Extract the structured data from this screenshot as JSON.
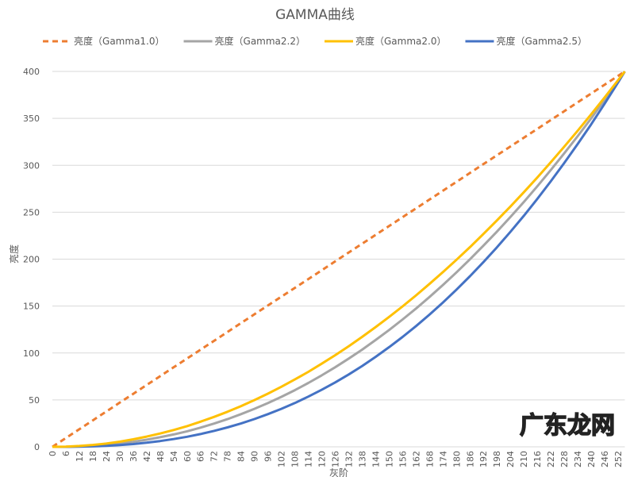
{
  "chart_data": {
    "type": "line",
    "title": "GAMMA曲线",
    "xlabel": "灰阶",
    "ylabel": "亮度",
    "ylim": [
      0,
      400
    ],
    "yticks": [
      0,
      50,
      100,
      150,
      200,
      250,
      300,
      350,
      400
    ],
    "xlim": [
      0,
      255
    ],
    "xticks": [
      0,
      6,
      12,
      18,
      24,
      30,
      36,
      42,
      48,
      54,
      60,
      66,
      72,
      78,
      84,
      90,
      96,
      102,
      108,
      114,
      120,
      126,
      132,
      138,
      144,
      150,
      156,
      162,
      168,
      174,
      180,
      186,
      192,
      198,
      204,
      210,
      216,
      222,
      228,
      234,
      240,
      246,
      252
    ],
    "grid": "horizontal",
    "legend": "top",
    "x": [
      0,
      6,
      12,
      18,
      24,
      30,
      36,
      42,
      48,
      54,
      60,
      66,
      72,
      78,
      84,
      90,
      96,
      102,
      108,
      114,
      120,
      126,
      132,
      138,
      144,
      150,
      156,
      162,
      168,
      174,
      180,
      186,
      192,
      198,
      204,
      210,
      216,
      222,
      228,
      234,
      240,
      246,
      252,
      255
    ],
    "series": [
      {
        "name": "亮度（Gamma1.0）",
        "color": "#ED7D31",
        "dash": true,
        "values": [
          0,
          9.4,
          18.8,
          28.2,
          37.6,
          47.1,
          56.5,
          65.9,
          75.3,
          84.7,
          94.1,
          103.5,
          112.9,
          122.4,
          131.8,
          141.2,
          150.6,
          160,
          169.4,
          178.8,
          188.2,
          197.6,
          207.1,
          216.5,
          225.9,
          235.3,
          244.7,
          254.1,
          263.5,
          272.9,
          282.4,
          291.8,
          301.2,
          310.6,
          320,
          329.4,
          338.8,
          348.2,
          357.6,
          367.1,
          376.5,
          385.9,
          395.3,
          400
        ]
      },
      {
        "name": "亮度（Gamma2.2）",
        "color": "#A5A5A5",
        "dash": false,
        "values": [
          0,
          0.1,
          0.5,
          1.2,
          2.2,
          3.6,
          5.4,
          7.6,
          10.2,
          13.2,
          16.6,
          20.5,
          24.8,
          29.5,
          34.8,
          40.5,
          46.6,
          53.3,
          60.4,
          68.1,
          76.2,
          84.8,
          94.0,
          103.6,
          113.8,
          124.5,
          135.7,
          147.4,
          159.7,
          172.5,
          185.9,
          199.8,
          214.3,
          229.3,
          244.8,
          260.9,
          277.6,
          294.9,
          312.7,
          331.1,
          350.0,
          369.6,
          389.7,
          400
        ]
      },
      {
        "name": "亮度（Gamma2.0）",
        "color": "#FFC000",
        "dash": false,
        "values": [
          0,
          0.2,
          0.9,
          2.0,
          3.5,
          5.5,
          8.0,
          10.9,
          14.2,
          17.9,
          22.1,
          26.8,
          31.9,
          37.4,
          43.4,
          49.8,
          56.7,
          64,
          71.8,
          79.9,
          88.6,
          97.7,
          107.2,
          117.2,
          127.6,
          138.4,
          149.7,
          161.4,
          173.6,
          186.2,
          199.3,
          212.8,
          226.8,
          241.2,
          256,
          271.3,
          287.0,
          303.2,
          319.8,
          336.8,
          354.3,
          372.3,
          390.6,
          400
        ]
      },
      {
        "name": "亮度（Gamma2.5）",
        "color": "#4472C4",
        "dash": false,
        "values": [
          0,
          0.0,
          0.2,
          0.5,
          1.1,
          1.9,
          3.0,
          4.4,
          6.2,
          8.3,
          10.7,
          13.6,
          17.0,
          20.7,
          24.9,
          29.6,
          34.8,
          40.5,
          46.7,
          53.5,
          60.8,
          68.7,
          77.1,
          86.2,
          95.9,
          106.2,
          117.1,
          128.7,
          140.9,
          153.8,
          167.5,
          181.8,
          196.8,
          212.5,
          229.0,
          246.2,
          264.2,
          282.9,
          302.4,
          322.7,
          343.7,
          365.6,
          388.3,
          400
        ]
      }
    ]
  },
  "watermark": "广东龙网"
}
